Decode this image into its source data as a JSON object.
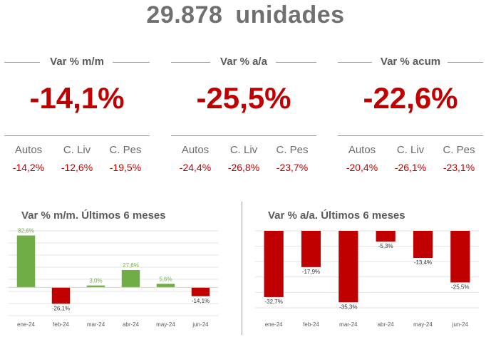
{
  "headline": "29.878  unidades",
  "kpis": [
    {
      "label": "Var % m/m",
      "value": "-14,1%",
      "sub": [
        {
          "name": "Autos",
          "value": "-14,2%"
        },
        {
          "name": "C. Liv",
          "value": "-12,6%"
        },
        {
          "name": "C. Pes",
          "value": "-19,5%"
        }
      ]
    },
    {
      "label": "Var % a/a",
      "value": "-25,5%",
      "sub": [
        {
          "name": "Autos",
          "value": "-24,4%"
        },
        {
          "name": "C. Liv",
          "value": "-26,8%"
        },
        {
          "name": "C. Pes",
          "value": "-23,7%"
        }
      ]
    },
    {
      "label": "Var % acum",
      "value": "-22,6%",
      "sub": [
        {
          "name": "Autos",
          "value": "-20,4%"
        },
        {
          "name": "C. Liv",
          "value": "-26,1%"
        },
        {
          "name": "C. Pes",
          "value": "-23,1%"
        }
      ]
    }
  ],
  "colors": {
    "positive": "#70ad47",
    "negative": "#c00000",
    "kpi_value": "#c00000"
  },
  "chart_data": [
    {
      "type": "bar",
      "title": "Var % m/m. Últimos 6 meses",
      "categories": [
        "ene-24",
        "feb-24",
        "mar-24",
        "abr-24",
        "may-24",
        "jun-24"
      ],
      "values": [
        82.6,
        -26.1,
        3.0,
        27.6,
        5.6,
        -14.1
      ],
      "data_labels": [
        "82,6%",
        "-26,1%",
        "3,0%",
        "27,6%",
        "5,6%",
        "-14,1%"
      ],
      "ylim": [
        -45,
        90
      ],
      "grid": true,
      "legend": "none"
    },
    {
      "type": "bar",
      "title": "Var % a/a. Últimos 6 meses",
      "categories": [
        "ene-24",
        "feb-24",
        "mar-24",
        "abr-24",
        "may-24",
        "jun-24"
      ],
      "values": [
        -32.7,
        -17.9,
        -35.3,
        -5.3,
        -13.4,
        -25.5
      ],
      "data_labels": [
        "-32,7%",
        "-17,9%",
        "-35,3%",
        "-5,3%",
        "-13,4%",
        "-25,5%"
      ],
      "ylim": [
        -38,
        0
      ],
      "grid": true,
      "legend": "none"
    }
  ]
}
